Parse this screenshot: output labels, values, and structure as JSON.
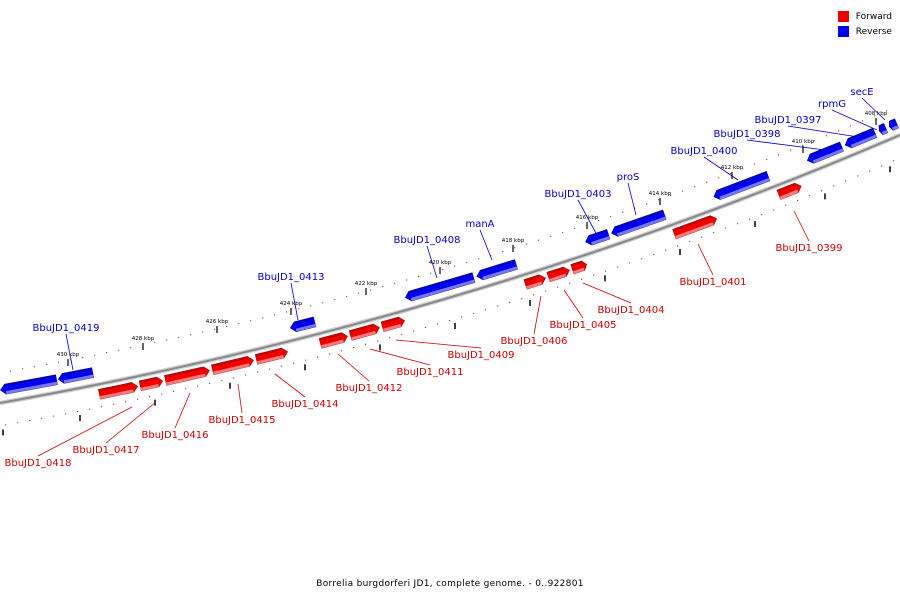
{
  "legend": {
    "forward_label": "Forward",
    "reverse_label": "Reverse",
    "forward_color": "#ee0000",
    "reverse_color": "#0000ee"
  },
  "caption": "Borrelia burgdorferi JD1, complete genome. - 0..922801",
  "ruler": {
    "tick_labels": [
      "408 kbp",
      "410 kbp",
      "412 kbp",
      "414 kbp",
      "416 kbp",
      "418 kbp",
      "420 kbp",
      "422 kbp",
      "424 kbp",
      "426 kbp",
      "428 kbp",
      "430 kbp"
    ]
  },
  "genes": {
    "forward": [
      "BbuJD1_0399",
      "BbuJD1_0401",
      "BbuJD1_0404",
      "BbuJD1_0405",
      "BbuJD1_0406",
      "BbuJD1_0409",
      "BbuJD1_0411",
      "BbuJD1_0412",
      "BbuJD1_0414",
      "BbuJD1_0415",
      "BbuJD1_0416",
      "BbuJD1_0417",
      "BbuJD1_0418"
    ],
    "reverse": [
      "secE",
      "rpmG",
      "BbuJD1_0397",
      "BbuJD1_0398",
      "BbuJD1_0400",
      "proS",
      "BbuJD1_0403",
      "manA",
      "BbuJD1_0408",
      "BbuJD1_0413",
      "BbuJD1_0419"
    ]
  },
  "colors": {
    "forward_label": "#cc0000",
    "reverse_label": "#0000cc",
    "backbone": "#888888"
  }
}
